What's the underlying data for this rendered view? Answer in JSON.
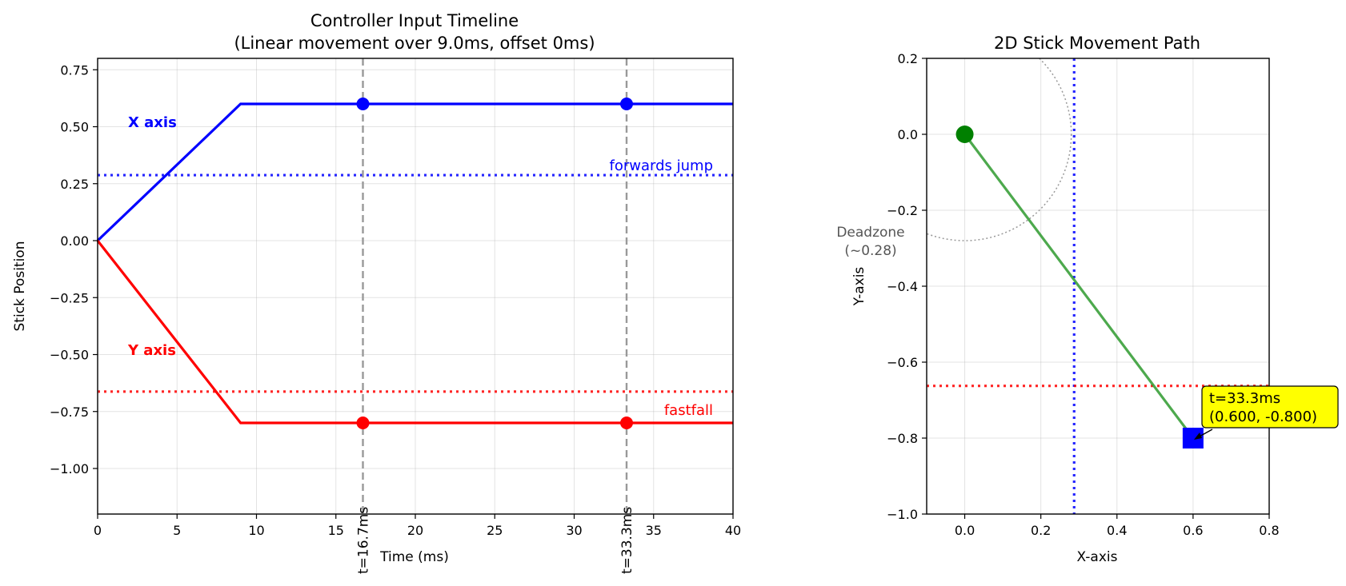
{
  "chart_data": [
    {
      "type": "line",
      "title": "Controller Input Timeline",
      "subtitle": "(Linear movement over 9.0ms, offset 0ms)",
      "xlabel": "Time (ms)",
      "ylabel": "Stick Position",
      "xlim": [
        0,
        40
      ],
      "ylim": [
        -1.2,
        0.8
      ],
      "xticks": [
        0,
        5,
        10,
        15,
        20,
        25,
        30,
        35,
        40
      ],
      "yticks": [
        0.75,
        0.5,
        0.25,
        0.0,
        -0.25,
        -0.5,
        -0.75,
        -1.0
      ],
      "xtick_labels": [
        "0",
        "5",
        "10",
        "15",
        "20",
        "25",
        "30",
        "35",
        "40"
      ],
      "ytick_labels": [
        "0.75",
        "0.50",
        "0.25",
        "0.00",
        "−0.25",
        "−0.50",
        "−0.75",
        "−1.00"
      ],
      "grid": true,
      "series": [
        {
          "name": "X axis",
          "color": "#0000ff",
          "x": [
            0,
            9,
            40
          ],
          "y": [
            0,
            0.6,
            0.6
          ]
        },
        {
          "name": "Y axis",
          "color": "#ff0000",
          "x": [
            0,
            9,
            40
          ],
          "y": [
            0,
            -0.8,
            -0.8
          ]
        }
      ],
      "markers": [
        {
          "x": 16.7,
          "y": 0.6,
          "color": "#0000ff"
        },
        {
          "x": 33.3,
          "y": 0.6,
          "color": "#0000ff"
        },
        {
          "x": 16.7,
          "y": -0.8,
          "color": "#ff0000"
        },
        {
          "x": 33.3,
          "y": -0.8,
          "color": "#ff0000"
        }
      ],
      "thresholds": [
        {
          "label": "forwards jump",
          "y": 0.2875,
          "color": "#0000ff"
        },
        {
          "label": "fastfall",
          "y": -0.6625,
          "color": "#ff0000"
        }
      ],
      "vlines": [
        {
          "x": 16.7,
          "label": "t=16.7ms"
        },
        {
          "x": 33.3,
          "label": "t=33.3ms"
        }
      ]
    },
    {
      "type": "scatter",
      "title": "2D Stick Movement Path",
      "xlabel": "X-axis",
      "ylabel": "Y-axis",
      "xlim": [
        -0.1,
        0.8
      ],
      "ylim": [
        -1.0,
        0.2
      ],
      "xticks": [
        0.0,
        0.2,
        0.4,
        0.6,
        0.8
      ],
      "yticks": [
        0.2,
        0.0,
        -0.2,
        -0.4,
        -0.6,
        -0.8,
        -1.0
      ],
      "xtick_labels": [
        "0.0",
        "0.2",
        "0.4",
        "0.6",
        "0.8"
      ],
      "ytick_labels": [
        "0.2",
        "0.0",
        "−0.2",
        "−0.4",
        "−0.6",
        "−0.8",
        "−1.0"
      ],
      "grid": true,
      "path": {
        "x": [
          0.0,
          0.6
        ],
        "y": [
          0.0,
          -0.8
        ],
        "color": "#2e9a2e"
      },
      "start_point": {
        "x": 0.0,
        "y": 0.0,
        "color": "#008000"
      },
      "end_point": {
        "x": 0.6,
        "y": -0.8,
        "color": "#0000ff"
      },
      "deadzone": {
        "radius": 0.28,
        "label_line1": "Deadzone",
        "label_line2": "(~0.28)"
      },
      "threshold_x": {
        "x": 0.2875,
        "color": "#0000ff"
      },
      "threshold_y": {
        "y": -0.6625,
        "color": "#ff0000"
      },
      "annotation": {
        "line1": "t=33.3ms",
        "line2": "(0.600, -0.800)",
        "x": 0.6,
        "y": -0.8,
        "background": "#ffff00"
      }
    }
  ]
}
